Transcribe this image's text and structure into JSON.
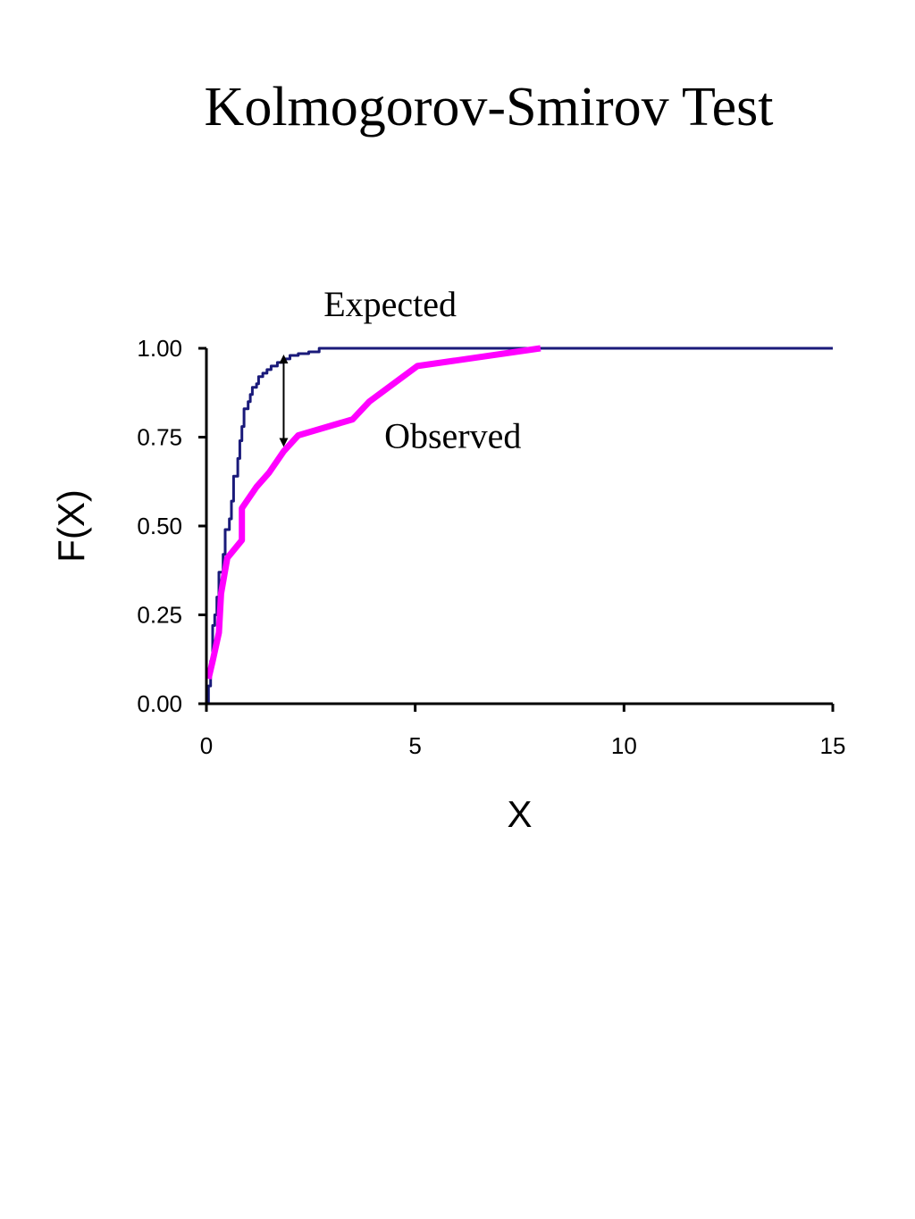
{
  "title": "Kolmogorov-Smirov Test",
  "chart_data": {
    "type": "line",
    "title": "Kolmogorov-Smirov Test",
    "xlabel": "X",
    "ylabel": "F(X)",
    "xlim": [
      0,
      15
    ],
    "ylim": [
      0,
      1
    ],
    "x_ticks": [
      "0",
      "5",
      "10",
      "15"
    ],
    "x_tick_values": [
      0,
      5,
      10,
      15
    ],
    "y_ticks": [
      "0.00",
      "0.25",
      "0.50",
      "0.75",
      "1.00"
    ],
    "y_tick_values": [
      0,
      0.25,
      0.5,
      0.75,
      1
    ],
    "grid": false,
    "legend": "none",
    "series": [
      {
        "name": "Expected",
        "color": "#1a1a7a",
        "style": "step",
        "points": [
          [
            0,
            0
          ],
          [
            0.05,
            0.05
          ],
          [
            0.1,
            0.12
          ],
          [
            0.15,
            0.22
          ],
          [
            0.2,
            0.25
          ],
          [
            0.25,
            0.3
          ],
          [
            0.3,
            0.37
          ],
          [
            0.4,
            0.42
          ],
          [
            0.45,
            0.49
          ],
          [
            0.55,
            0.52
          ],
          [
            0.6,
            0.57
          ],
          [
            0.65,
            0.64
          ],
          [
            0.75,
            0.69
          ],
          [
            0.8,
            0.74
          ],
          [
            0.85,
            0.78
          ],
          [
            0.9,
            0.83
          ],
          [
            1.0,
            0.85
          ],
          [
            1.05,
            0.87
          ],
          [
            1.1,
            0.89
          ],
          [
            1.2,
            0.9
          ],
          [
            1.25,
            0.92
          ],
          [
            1.35,
            0.93
          ],
          [
            1.45,
            0.94
          ],
          [
            1.55,
            0.95
          ],
          [
            1.7,
            0.96
          ],
          [
            1.85,
            0.97
          ],
          [
            2.0,
            0.98
          ],
          [
            2.2,
            0.985
          ],
          [
            2.45,
            0.99
          ],
          [
            2.7,
            1.0
          ],
          [
            15,
            1.0
          ]
        ]
      },
      {
        "name": "Observed",
        "color": "#ff00ff",
        "style": "line",
        "points": [
          [
            0.05,
            0.07
          ],
          [
            0.15,
            0.12
          ],
          [
            0.3,
            0.2
          ],
          [
            0.35,
            0.31
          ],
          [
            0.5,
            0.41
          ],
          [
            0.85,
            0.46
          ],
          [
            0.85,
            0.55
          ],
          [
            1.2,
            0.61
          ],
          [
            1.5,
            0.65
          ],
          [
            1.85,
            0.71
          ],
          [
            2.2,
            0.755
          ],
          [
            3.5,
            0.8
          ],
          [
            3.9,
            0.85
          ],
          [
            5.05,
            0.95
          ],
          [
            8.0,
            1.0
          ]
        ]
      }
    ],
    "annotations": [
      {
        "text": "Expected",
        "x": 4.4,
        "y": 1.09
      },
      {
        "text": "Observed",
        "x": 5.9,
        "y": 0.72
      }
    ],
    "ks_distance_marker": {
      "x": 1.85,
      "y_from": 0.975,
      "y_to": 0.73
    }
  }
}
